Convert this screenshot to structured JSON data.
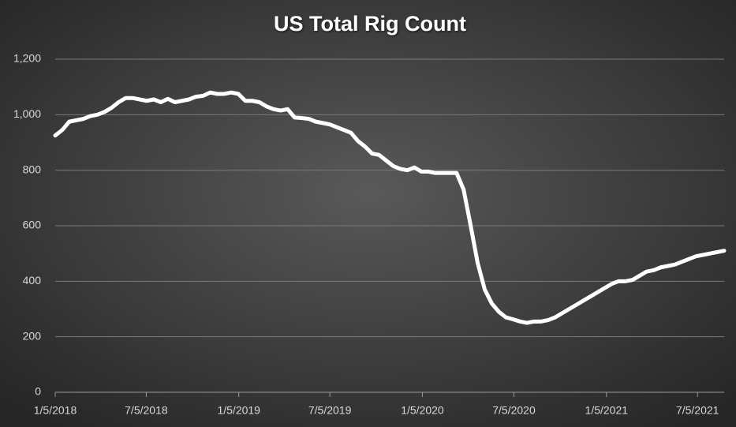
{
  "chart_data": {
    "type": "line",
    "title": "US Total Rig Count",
    "x": [
      "1/5/2018",
      "1/19/2018",
      "2/2/2018",
      "2/16/2018",
      "3/2/2018",
      "3/16/2018",
      "3/30/2018",
      "4/13/2018",
      "4/27/2018",
      "5/11/2018",
      "5/25/2018",
      "6/8/2018",
      "6/22/2018",
      "7/6/2018",
      "7/20/2018",
      "8/3/2018",
      "8/17/2018",
      "8/31/2018",
      "9/14/2018",
      "9/28/2018",
      "10/12/2018",
      "10/26/2018",
      "11/9/2018",
      "11/23/2018",
      "12/7/2018",
      "12/21/2018",
      "1/4/2019",
      "1/18/2019",
      "2/1/2019",
      "2/15/2019",
      "3/1/2019",
      "3/15/2019",
      "3/29/2019",
      "4/12/2019",
      "4/26/2019",
      "5/10/2019",
      "5/24/2019",
      "6/7/2019",
      "6/21/2019",
      "7/5/2019",
      "7/19/2019",
      "8/2/2019",
      "8/16/2019",
      "8/30/2019",
      "9/13/2019",
      "9/27/2019",
      "10/11/2019",
      "10/25/2019",
      "11/8/2019",
      "11/22/2019",
      "12/6/2019",
      "12/20/2019",
      "1/3/2020",
      "1/17/2020",
      "1/31/2020",
      "2/14/2020",
      "2/28/2020",
      "3/13/2020",
      "3/27/2020",
      "4/10/2020",
      "4/24/2020",
      "5/8/2020",
      "5/22/2020",
      "6/5/2020",
      "6/19/2020",
      "7/3/2020",
      "7/17/2020",
      "7/31/2020",
      "8/14/2020",
      "8/28/2020",
      "9/11/2020",
      "9/25/2020",
      "10/9/2020",
      "10/23/2020",
      "11/6/2020",
      "11/20/2020",
      "12/4/2020",
      "12/18/2020",
      "1/1/2021",
      "1/15/2021",
      "1/29/2021",
      "2/12/2021",
      "2/26/2021",
      "3/12/2021",
      "3/26/2021",
      "4/9/2021",
      "4/23/2021",
      "5/7/2021",
      "5/21/2021",
      "6/4/2021",
      "6/18/2021",
      "7/2/2021",
      "7/16/2021",
      "7/30/2021",
      "8/13/2021",
      "8/27/2021"
    ],
    "series": [
      {
        "color": "#ffffff",
        "values": [
          925,
          945,
          975,
          980,
          985,
          995,
          1000,
          1010,
          1025,
          1045,
          1060,
          1060,
          1055,
          1050,
          1055,
          1045,
          1057,
          1045,
          1050,
          1055,
          1065,
          1068,
          1080,
          1075,
          1075,
          1080,
          1075,
          1050,
          1050,
          1045,
          1030,
          1020,
          1015,
          1020,
          990,
          988,
          985,
          975,
          970,
          965,
          955,
          945,
          935,
          905,
          885,
          860,
          855,
          835,
          815,
          805,
          800,
          810,
          795,
          795,
          790,
          790,
          790,
          790,
          730,
          600,
          465,
          370,
          320,
          290,
          270,
          263,
          255,
          250,
          255,
          255,
          260,
          270,
          285,
          300,
          315,
          330,
          345,
          360,
          375,
          390,
          400,
          400,
          405,
          420,
          435,
          440,
          450,
          455,
          460,
          470,
          480,
          490,
          495,
          500,
          505,
          510
        ]
      }
    ],
    "xlim": [
      "1/5/2018",
      "8/27/2021"
    ],
    "xticks": [
      "1/5/2018",
      "7/5/2018",
      "1/5/2019",
      "7/5/2019",
      "1/5/2020",
      "7/5/2020",
      "1/5/2021",
      "7/5/2021"
    ],
    "ylim": [
      0,
      1200
    ],
    "yticks": [
      0,
      200,
      400,
      600,
      800,
      {
        "value": 1000,
        "label": "1,000"
      },
      {
        "value": 1200,
        "label": "1,200"
      }
    ],
    "grid": true
  }
}
